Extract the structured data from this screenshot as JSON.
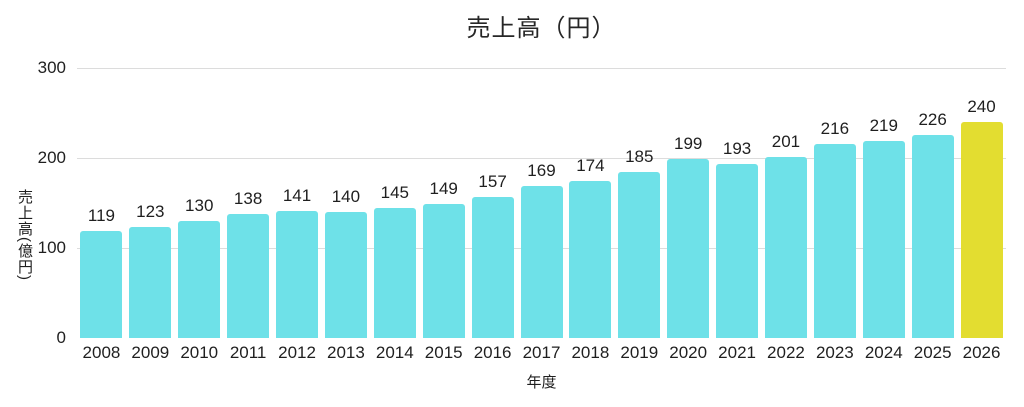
{
  "chart_data": {
    "type": "bar",
    "title": "売上高（円）",
    "xlabel": "年度",
    "ylabel": "売上高(億円)",
    "categories": [
      "2008",
      "2009",
      "2010",
      "2011",
      "2012",
      "2013",
      "2014",
      "2015",
      "2016",
      "2017",
      "2018",
      "2019",
      "2020",
      "2021",
      "2022",
      "2023",
      "2024",
      "2025",
      "2026"
    ],
    "values": [
      119,
      123,
      130,
      138,
      141,
      140,
      145,
      149,
      157,
      169,
      174,
      185,
      199,
      193,
      201,
      216,
      219,
      226,
      240
    ],
    "ylim": [
      0,
      300
    ],
    "yticks": [
      0,
      100,
      200,
      300
    ],
    "grid": true,
    "value_labels_shown": true,
    "legend_position": "none",
    "bar_color": "#6EE1E8",
    "highlight_color": "#E3DD30",
    "highlight_index": 18,
    "text_color": "#1F1F1F",
    "grid_color": "#DCDCDC",
    "background_color": "#FFFFFF"
  }
}
